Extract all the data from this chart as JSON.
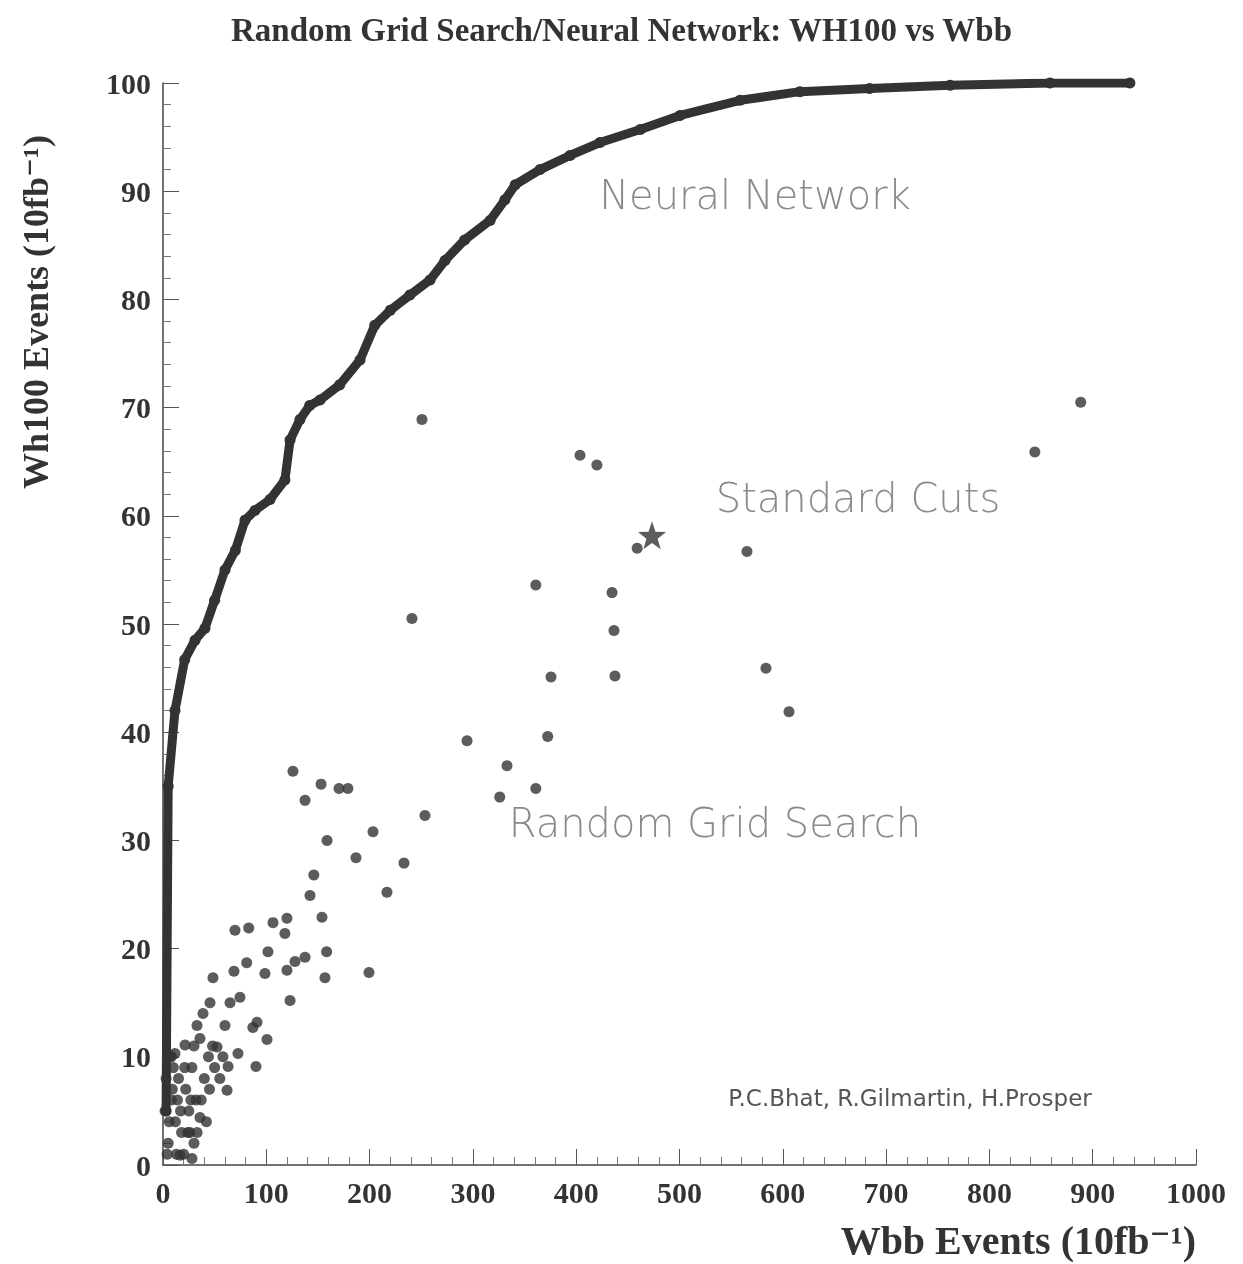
{
  "chart_data": {
    "type": "scatter",
    "title": "Random Grid Search/Neural Network: WH100 vs Wbb",
    "xlabel": "Wbb Events (10fb⁻¹)",
    "ylabel": "Wh100 Events (10fb⁻¹)",
    "xlim": [
      0,
      1000
    ],
    "xticks": [
      0,
      100,
      200,
      300,
      400,
      500,
      600,
      700,
      800,
      900,
      1000
    ],
    "ylim": [
      0,
      100
    ],
    "yticks": [
      0,
      10,
      20,
      30,
      40,
      50,
      60,
      70,
      80,
      90,
      100
    ],
    "grid": false,
    "marker": "circle",
    "annotations": [
      "Neural Network",
      "Standard Cuts",
      "Random Grid Search",
      "P.C.Bhat, R.Gilmartin, H.Prosper"
    ],
    "series": [
      {
        "type": "line",
        "color": "#333333",
        "x": [
          3,
          5,
          11.6,
          21,
          31,
          40.6,
          50,
          60,
          70,
          79.4,
          89,
          103.6,
          118,
          123,
          132.6,
          142,
          152,
          171,
          190.7,
          205,
          220,
          239,
          258.5,
          273,
          292,
          316.6,
          331,
          341,
          365,
          394,
          423,
          462,
          500.5,
          558.6,
          616.6,
          684,
          762,
          858.6,
          936
        ],
        "values": [
          5,
          35,
          42,
          46.7,
          48.5,
          49.6,
          52.2,
          55,
          56.8,
          59.6,
          60.5,
          61.5,
          63.3,
          67,
          68.9,
          70.2,
          70.7,
          72.1,
          74.4,
          77.6,
          79,
          80.4,
          81.8,
          83.6,
          85.5,
          87.3,
          89.2,
          90.6,
          92,
          93.3,
          94.5,
          95.7,
          97,
          98.4,
          99.2,
          99.5,
          99.8,
          100,
          100
        ]
      },
      {
        "color": "#333333",
        "x": [
          250.7,
          403.7,
          420,
          844,
          888.4,
          565.3,
          459,
          360.9,
          434.7,
          436.6,
          241,
          375.6,
          437.5,
          583.7,
          606,
          372.4,
          294.3,
          333,
          360.9,
          326,
          253.6,
          203.3,
          158.8,
          125.8,
          153,
          137.5,
          170.4,
          179,
          186.8,
          216.8,
          233.3,
          199.4,
          156.8,
          158.4,
          153.9,
          142.3,
          123,
          146,
          69.7,
          83,
          48.4,
          68.7,
          81,
          106.5,
          120,
          101.6,
          98.7,
          120,
          127.8,
          118,
          137.5,
          91,
          100.7,
          90,
          87,
          74.5,
          38.7,
          32.9,
          45.5,
          64.9,
          60,
          52.3,
          35.8,
          21.3,
          11.6,
          72.6,
          63,
          62,
          35.8,
          26,
          28,
          16.5,
          5,
          8,
          12,
          15,
          18,
          22,
          25,
          28,
          30,
          10,
          3,
          6,
          20,
          14,
          32,
          40,
          45,
          42,
          37,
          55,
          48,
          30,
          8,
          2,
          24,
          17,
          4,
          9,
          13,
          27,
          33,
          50,
          58,
          44,
          21,
          7
        ],
        "values": [
          68.9,
          65.6,
          64.7,
          65.9,
          70.5,
          56.7,
          57,
          53.6,
          52.9,
          49.4,
          50.5,
          45.1,
          45.2,
          45.9,
          41.9,
          39.6,
          39.2,
          36.9,
          34.8,
          34,
          32.3,
          30.8,
          30,
          36.4,
          35.2,
          33.7,
          34.8,
          34.8,
          28.4,
          25.2,
          27.9,
          17.8,
          17.3,
          19.7,
          22.9,
          24.9,
          15.2,
          26.8,
          21.7,
          21.9,
          17.3,
          17.9,
          18.7,
          22.4,
          22.8,
          19.7,
          17.7,
          18,
          18.8,
          21.4,
          19.2,
          13.2,
          11.6,
          9.1,
          12.7,
          15.5,
          14,
          12.9,
          15,
          15,
          12.9,
          10.9,
          11.7,
          11.1,
          10.3,
          10.3,
          9.1,
          6.9,
          4.4,
          3,
          0.6,
          0.9,
          2,
          6,
          4,
          8,
          3,
          7,
          5,
          9,
          2,
          9,
          8,
          4,
          1,
          6,
          6,
          8,
          7,
          4,
          6,
          8,
          11,
          11,
          10,
          5,
          3,
          5,
          1,
          7,
          1,
          6,
          3,
          9,
          10,
          10,
          9,
          10
        ]
      },
      {
        "type": "scatter",
        "color": "#333333",
        "marker": "star",
        "x": [
          473.4
        ],
        "values": [
          58.2
        ]
      }
    ]
  }
}
